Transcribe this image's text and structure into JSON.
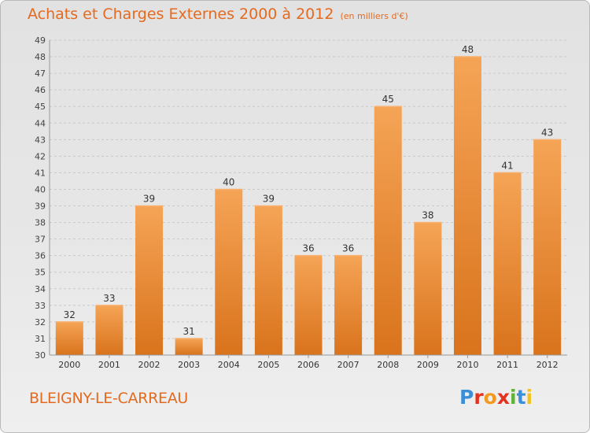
{
  "header": {
    "title": "Achats et Charges Externes 2000 à 2012",
    "unit": "(en milliers d'€)"
  },
  "footer": {
    "commune": "BLEIGNY-LE-CARREAU",
    "logo": "Proxiti"
  },
  "colors": {
    "accent": "#e46a1f",
    "bar_top": "#f5a456",
    "bar_bottom": "#d9731c",
    "logo": [
      "#3a8fd8",
      "#e4321f",
      "#f29a1f",
      "#e4321f",
      "#5fb336",
      "#3a8fd8",
      "#f2c21f"
    ]
  },
  "chart_data": {
    "type": "bar",
    "title": "Achats et Charges Externes 2000 à 2012",
    "subtitle": "(en milliers d'€)",
    "categories": [
      "2000",
      "2001",
      "2002",
      "2003",
      "2004",
      "2005",
      "2006",
      "2007",
      "2008",
      "2009",
      "2010",
      "2011",
      "2012"
    ],
    "values": [
      32,
      33,
      39,
      31,
      40,
      39,
      36,
      36,
      45,
      38,
      48,
      41,
      43
    ],
    "data_labels": [
      "32",
      "33",
      "39",
      "31",
      "40",
      "39",
      "36",
      "36",
      "45",
      "38",
      "48",
      "41",
      "43"
    ],
    "ylim": [
      30,
      49
    ],
    "yticks": [
      30,
      31,
      32,
      33,
      34,
      35,
      36,
      37,
      38,
      39,
      40,
      41,
      42,
      43,
      44,
      45,
      46,
      47,
      48,
      49
    ],
    "grid": true,
    "xlabel": "",
    "ylabel": ""
  }
}
